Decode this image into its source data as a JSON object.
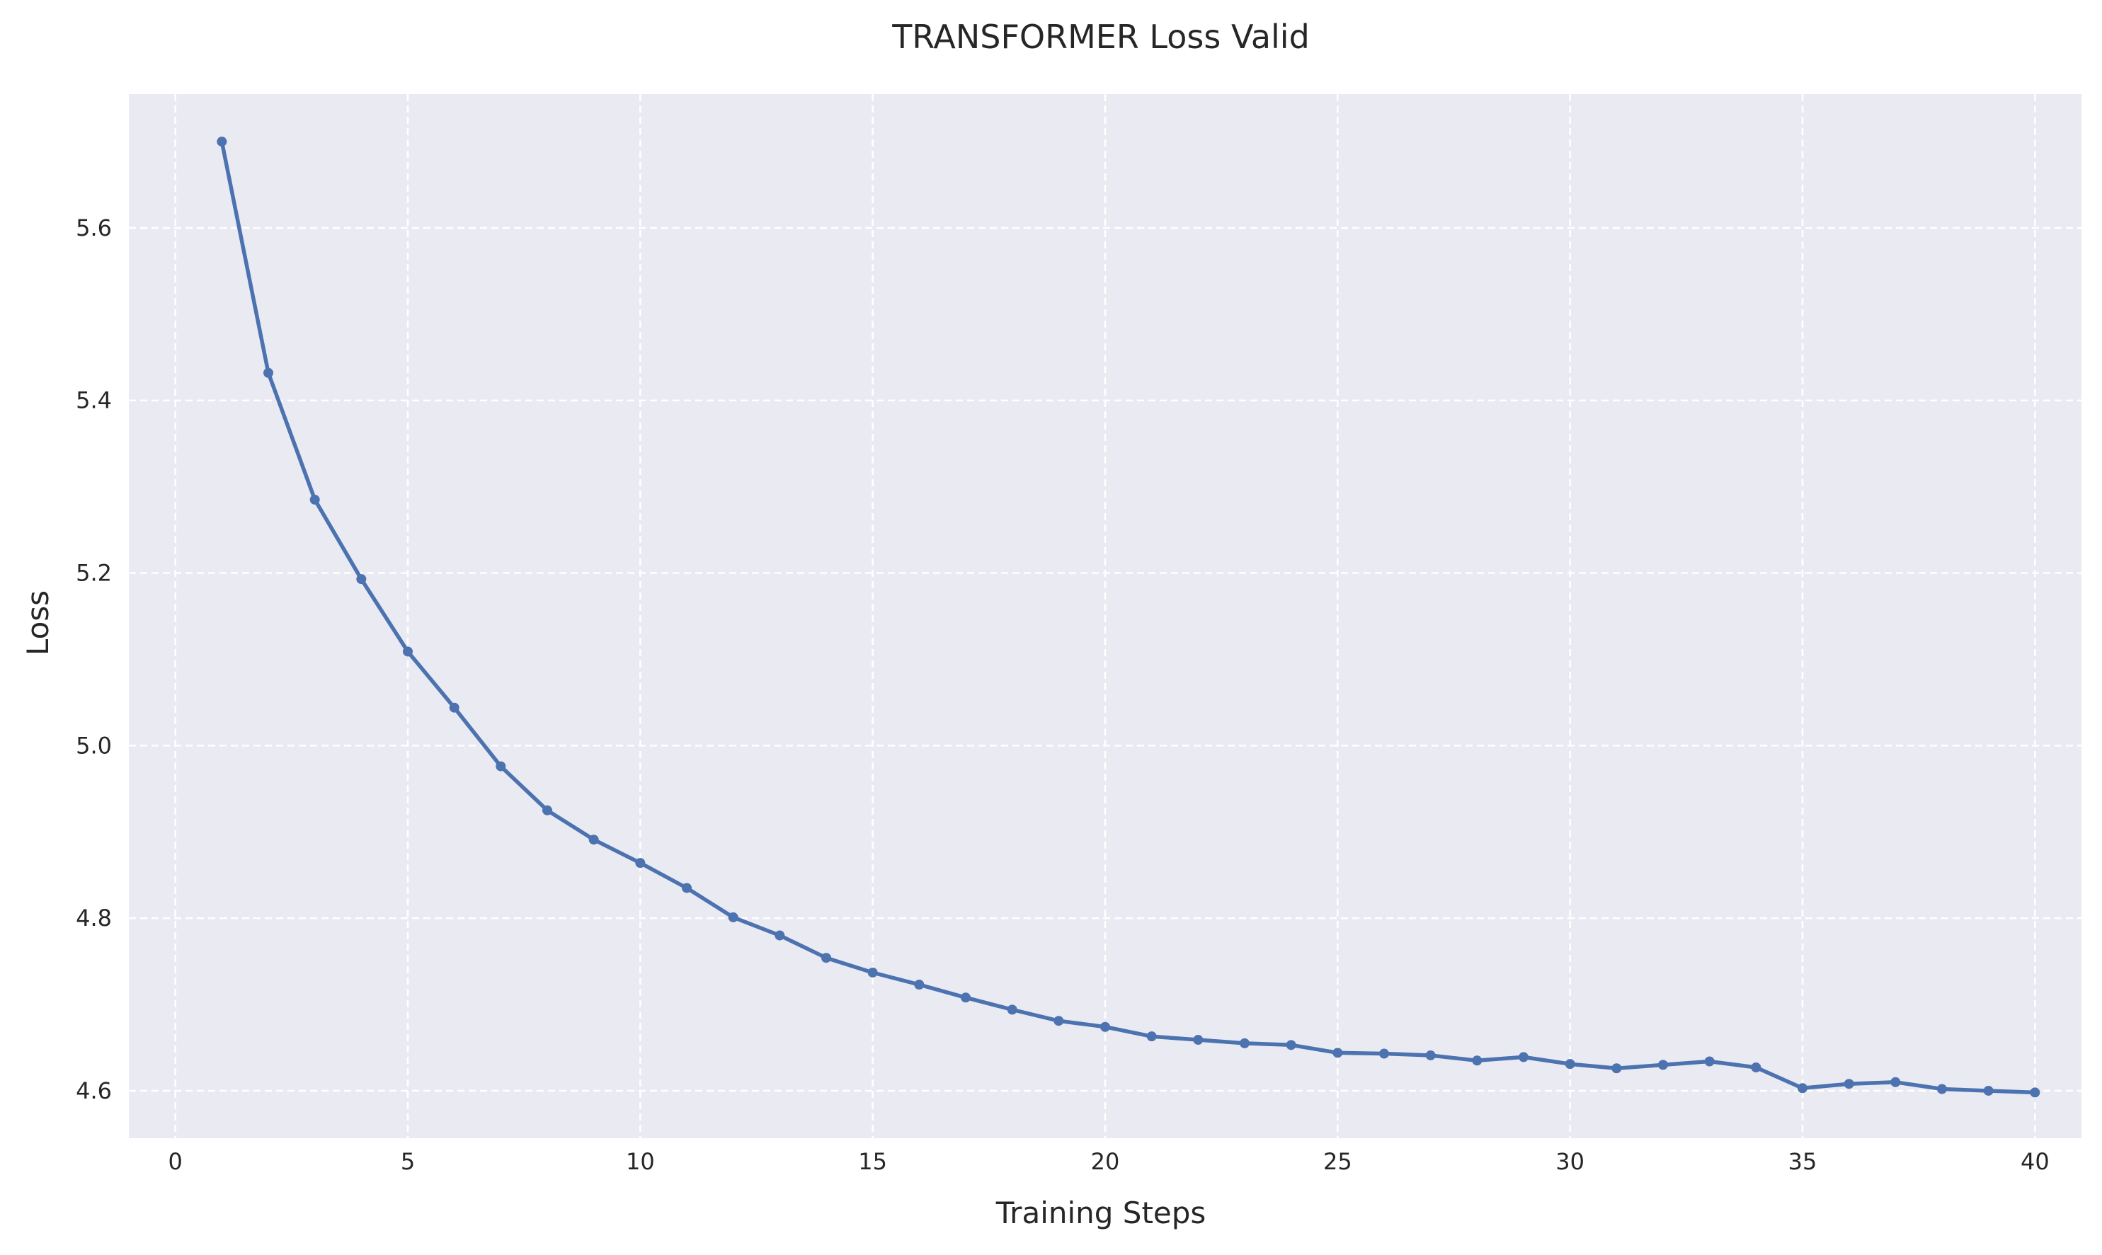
{
  "chart_data": {
    "type": "line",
    "title": "TRANSFORMER Loss Valid",
    "xlabel": "Training Steps",
    "ylabel": "Loss",
    "xlim": [
      -1,
      41
    ],
    "ylim": [
      4.545,
      5.755
    ],
    "xticks": [
      0,
      5,
      10,
      15,
      20,
      25,
      30,
      35,
      40
    ],
    "xtick_labels": [
      "0",
      "5",
      "10",
      "15",
      "20",
      "25",
      "30",
      "35",
      "40"
    ],
    "yticks": [
      4.6,
      4.8,
      5.0,
      5.2,
      5.4,
      5.6
    ],
    "ytick_labels": [
      "4.6",
      "4.8",
      "5.0",
      "5.2",
      "5.4",
      "5.6"
    ],
    "grid": true,
    "grid_style": "dashed",
    "colors": {
      "background": "#eaeaf2",
      "grid": "#ffffff",
      "line": "#4c72b0"
    },
    "series": [
      {
        "x": [
          1,
          2,
          3,
          4,
          5,
          6,
          7,
          8,
          9,
          10,
          11,
          12,
          13,
          14,
          15,
          16,
          17,
          18,
          19,
          20,
          21,
          22,
          23,
          24,
          25,
          26,
          27,
          28,
          29,
          30,
          31,
          32,
          33,
          34,
          35,
          36,
          37,
          38,
          39,
          40
        ],
        "values": [
          5.7,
          5.432,
          5.285,
          5.193,
          5.109,
          5.044,
          4.976,
          4.925,
          4.891,
          4.864,
          4.835,
          4.801,
          4.78,
          4.754,
          4.737,
          4.723,
          4.708,
          4.694,
          4.681,
          4.674,
          4.663,
          4.659,
          4.655,
          4.653,
          4.644,
          4.643,
          4.641,
          4.635,
          4.639,
          4.631,
          4.626,
          4.63,
          4.634,
          4.627,
          4.603,
          4.608,
          4.61,
          4.602,
          4.6,
          4.598
        ]
      }
    ]
  }
}
